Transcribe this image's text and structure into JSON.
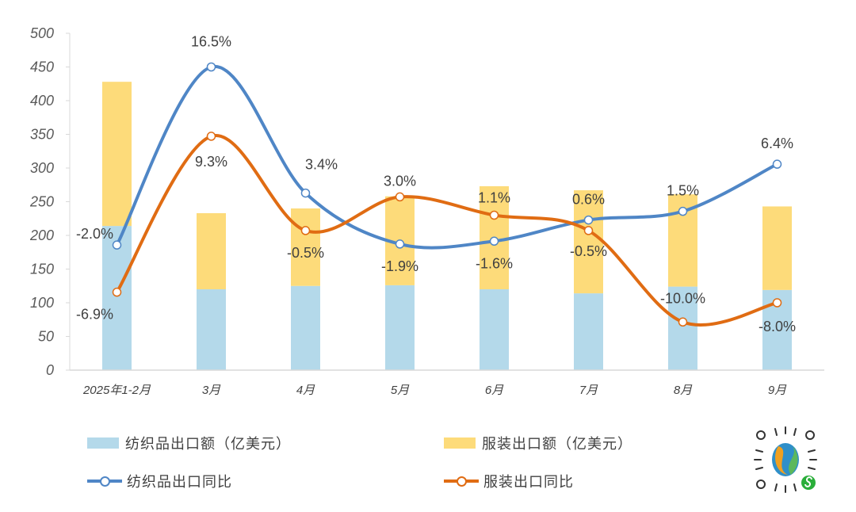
{
  "chart_data": {
    "type": "bar+line",
    "categories": [
      "2025年1-2月",
      "3月",
      "4月",
      "5月",
      "6月",
      "7月",
      "8月",
      "9月"
    ],
    "ylim": [
      0,
      500
    ],
    "yticks": [
      0,
      50,
      100,
      150,
      200,
      250,
      300,
      350,
      400,
      450,
      500
    ],
    "secondary_ylim": [
      -15,
      20
    ],
    "grid": false,
    "legend_placement": "bottom",
    "bar_series": [
      {
        "name": "纺织品出口额（亿美元）",
        "color": "#b4d9ea",
        "values": [
          214,
          120,
          125,
          126,
          120,
          114,
          124,
          119
        ]
      },
      {
        "name": "服装出口额（亿美元）",
        "color": "#fddb7a",
        "values": [
          214,
          113,
          115,
          132,
          153,
          153,
          137,
          124
        ]
      }
    ],
    "line_series": [
      {
        "name": "纺织品出口同比",
        "color": "#4f86c6",
        "values": [
          -2.0,
          16.5,
          3.4,
          -1.9,
          -1.6,
          0.6,
          1.5,
          6.4
        ],
        "labels": [
          "-2.0%",
          "16.5%",
          "3.4%",
          "-1.9%",
          "-1.6%",
          "0.6%",
          "1.5%",
          "6.4%"
        ]
      },
      {
        "name": "服装出口同比",
        "color": "#e06c13",
        "values": [
          -6.9,
          9.3,
          -0.5,
          3.0,
          1.1,
          -0.5,
          -10.0,
          -8.0
        ],
        "labels": [
          "-6.9%",
          "9.3%",
          "-0.5%",
          "3.0%",
          "1.1%",
          "-0.5%",
          "-10.0%",
          "-8.0%"
        ]
      }
    ]
  }
}
